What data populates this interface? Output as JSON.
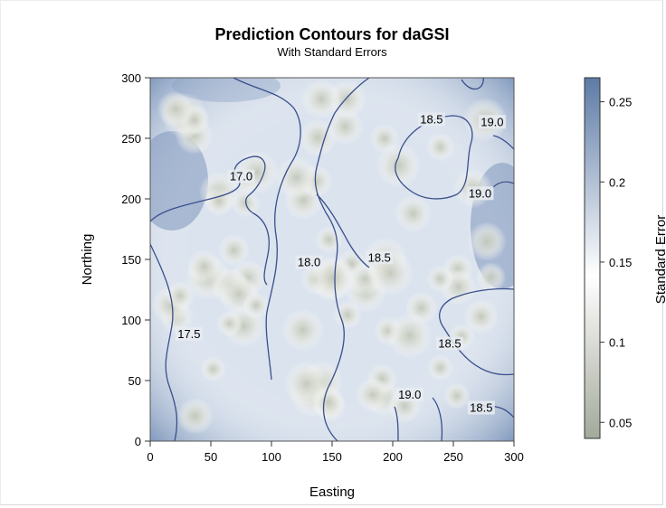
{
  "chart_data": {
    "type": "heatmap",
    "title": "Prediction Contours for daGSI",
    "subtitle": "With Standard Errors",
    "xlabel": "Easting",
    "ylabel": "Northing",
    "xlim": [
      0,
      300
    ],
    "ylim": [
      0,
      300
    ],
    "xticks": [
      "0",
      "50",
      "100",
      "150",
      "200",
      "250",
      "300"
    ],
    "yticks": [
      "0",
      "50",
      "100",
      "150",
      "200",
      "250",
      "300"
    ],
    "colorbar": {
      "label": "Standard Error",
      "range": [
        0.04,
        0.265
      ],
      "ticks": [
        "0.05",
        "0.1",
        "0.15",
        "0.2",
        "0.25"
      ],
      "tick_values": [
        0.05,
        0.1,
        0.15,
        0.2,
        0.25
      ],
      "colors": [
        "#a3a99b",
        "#ffffff",
        "#5d7ba6"
      ]
    },
    "contour_levels": [
      17.0,
      17.5,
      18.0,
      18.5,
      19.0
    ],
    "contour_labels": [
      {
        "text": "17.0",
        "x": 75,
        "y": 216
      },
      {
        "text": "17.5",
        "x": 32,
        "y": 86
      },
      {
        "text": "18.0",
        "x": 131,
        "y": 145
      },
      {
        "text": "18.5",
        "x": 189,
        "y": 149
      },
      {
        "text": "18.5",
        "x": 232,
        "y": 263
      },
      {
        "text": "19.0",
        "x": 282,
        "y": 261
      },
      {
        "text": "19.0",
        "x": 272,
        "y": 202
      },
      {
        "text": "18.5",
        "x": 247,
        "y": 78
      },
      {
        "text": "19.0",
        "x": 214,
        "y": 36
      },
      {
        "text": "18.5",
        "x": 273,
        "y": 25
      }
    ],
    "contour_color": "#3a4f8c"
  }
}
